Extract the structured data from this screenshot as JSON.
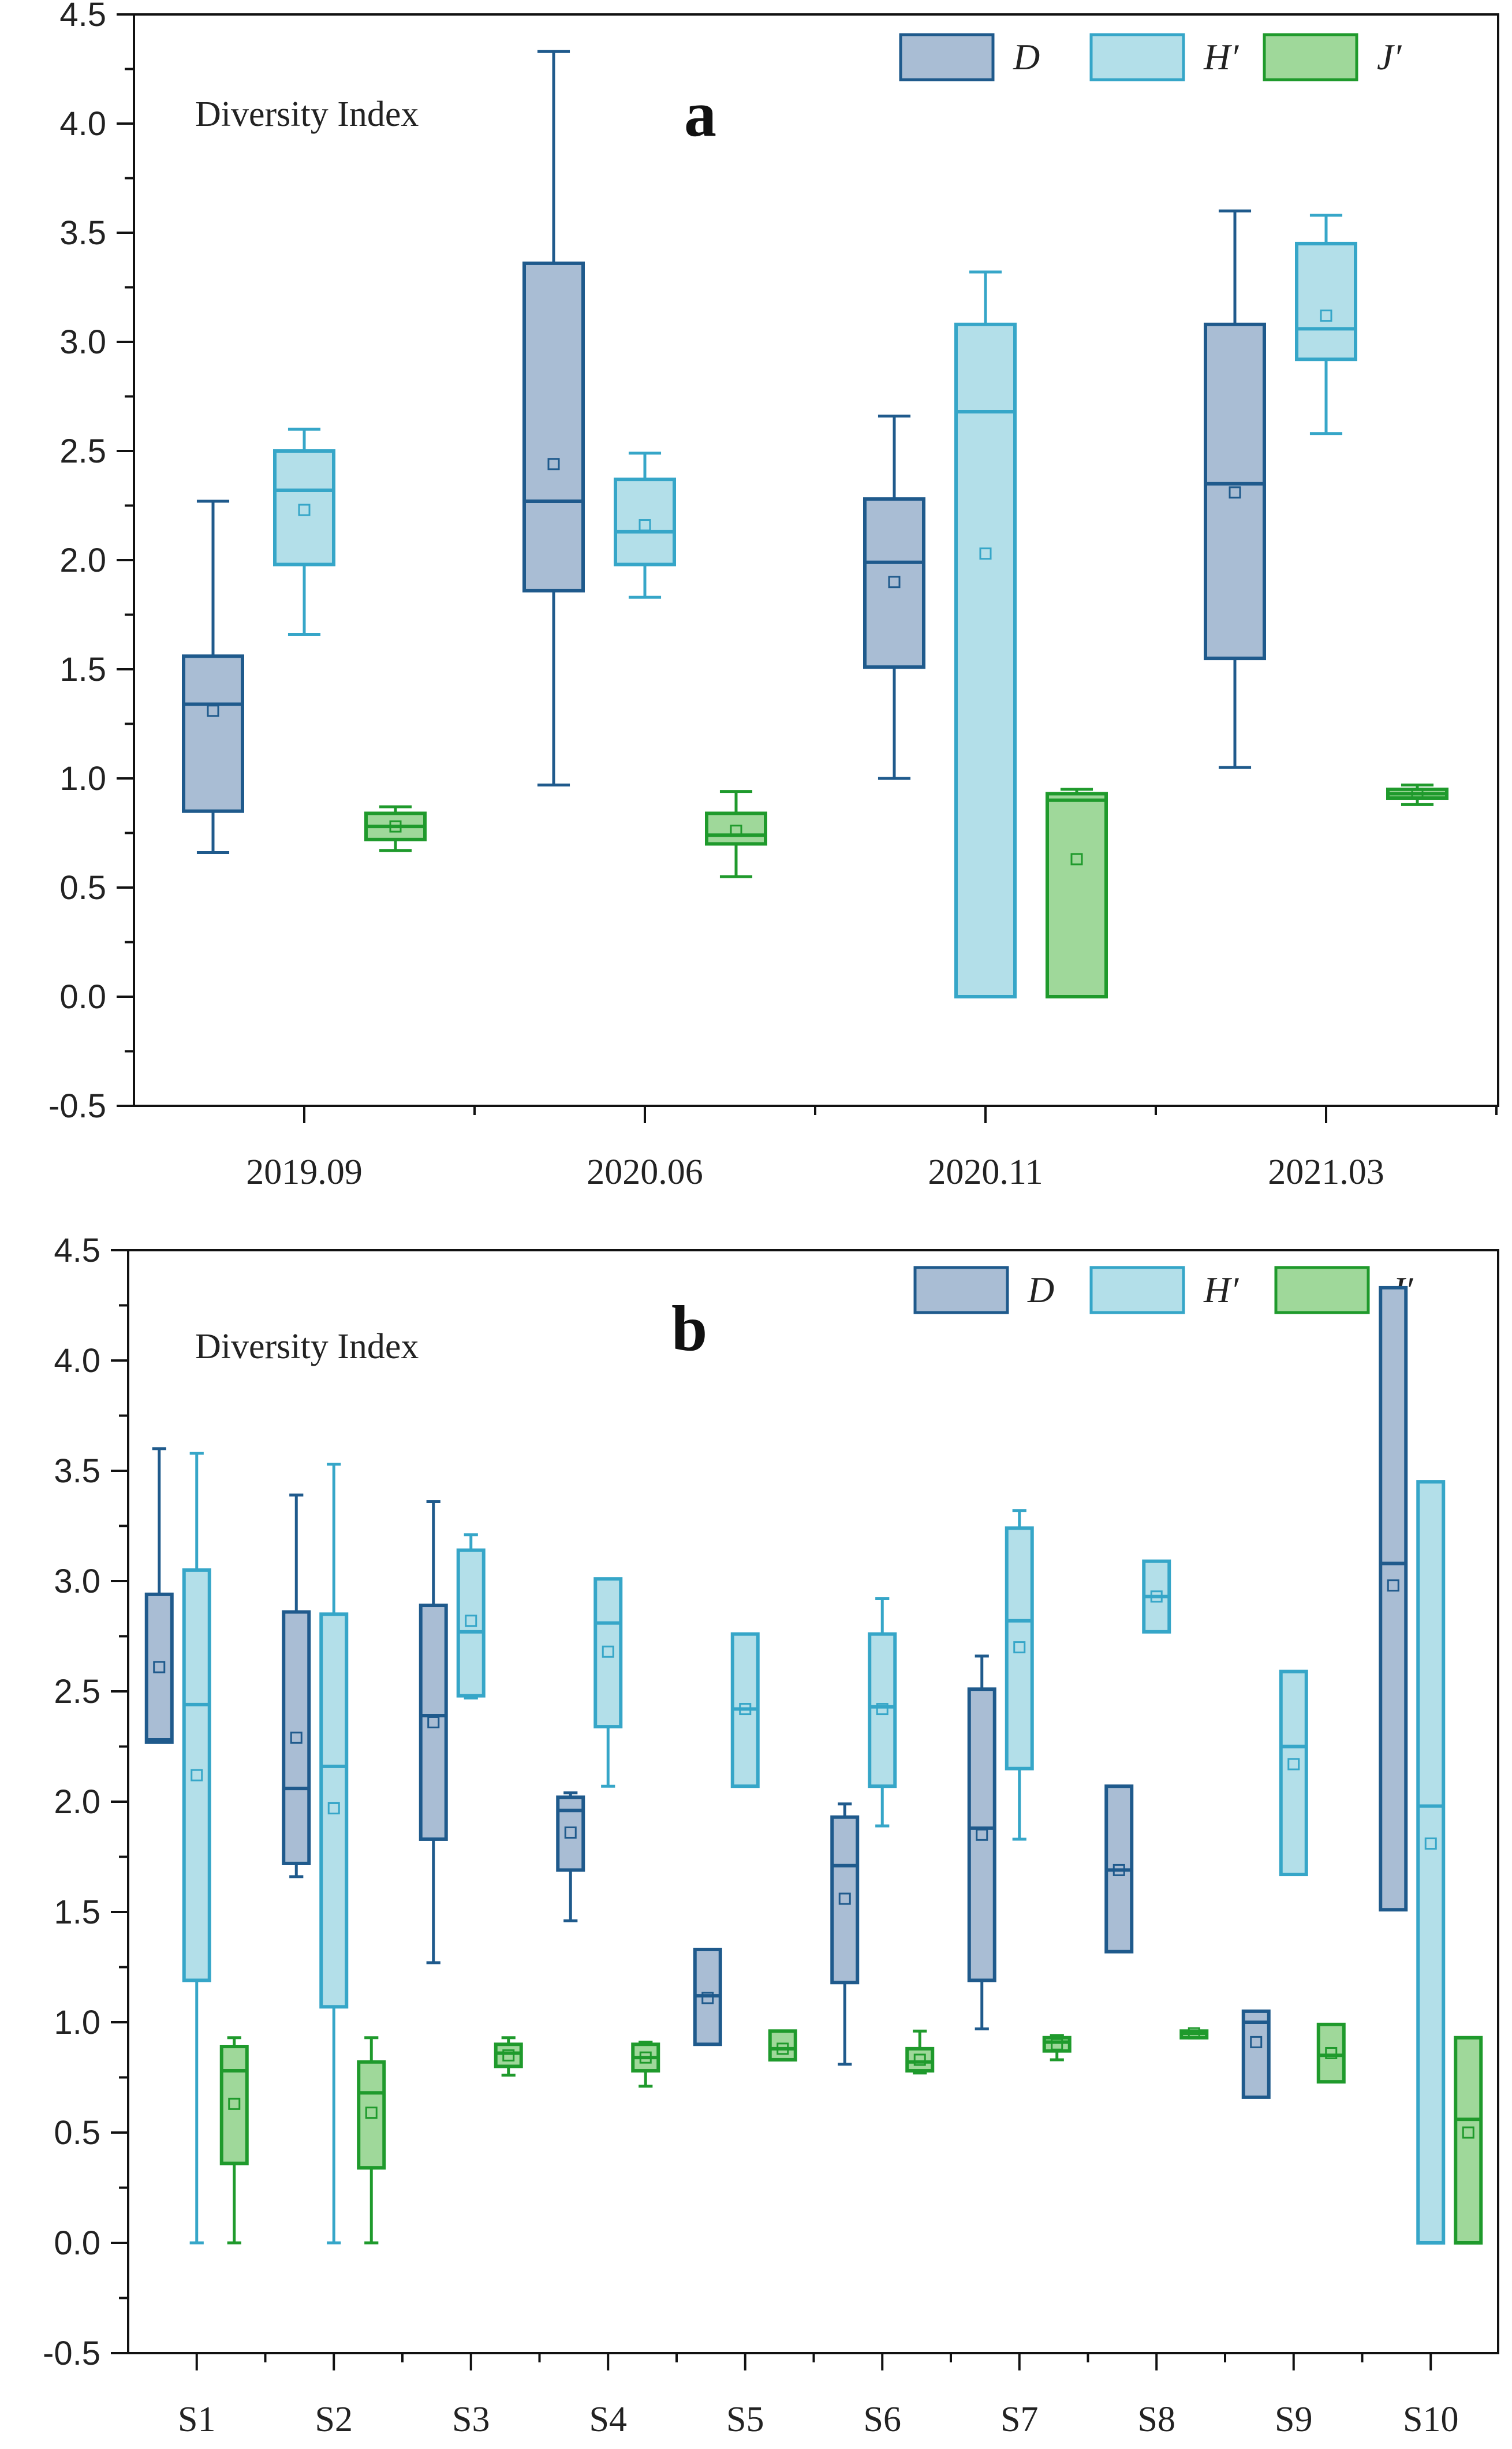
{
  "colors": {
    "D": {
      "stroke": "#1f5a8c",
      "fill": "#a9bdd4"
    },
    "H": {
      "stroke": "#36a6c8",
      "fill": "#b3dfe9"
    },
    "J": {
      "stroke": "#1f9a2c",
      "fill": "#9fd89a"
    }
  },
  "chart_data": [
    {
      "type": "box",
      "id": "a",
      "letter": "a",
      "title": "Diversity Index",
      "ylim": [
        -0.5,
        4.5
      ],
      "yticks": [
        "-0.5",
        "0.0",
        "0.5",
        "1.0",
        "1.5",
        "2.0",
        "2.5",
        "3.0",
        "3.5",
        "4.0",
        "4.5"
      ],
      "categories": [
        "2019.09",
        "2020.06",
        "2020.11",
        "2021.03"
      ],
      "legend": [
        "D",
        "H′",
        "J′"
      ],
      "series": [
        {
          "name": "D",
          "key": "D",
          "boxes": [
            {
              "min": 0.66,
              "q1": 0.85,
              "median": 1.34,
              "q3": 1.56,
              "max": 2.27,
              "mean": 1.31
            },
            {
              "min": 0.97,
              "q1": 1.86,
              "median": 2.27,
              "q3": 3.36,
              "max": 4.33,
              "mean": 2.44
            },
            {
              "min": 1.0,
              "q1": 1.51,
              "median": 1.99,
              "q3": 2.28,
              "max": 2.66,
              "mean": 1.9
            },
            {
              "min": 1.05,
              "q1": 1.55,
              "median": 2.35,
              "q3": 3.08,
              "max": 3.6,
              "mean": 2.31
            }
          ]
        },
        {
          "name": "H′",
          "key": "H",
          "boxes": [
            {
              "min": 1.66,
              "q1": 1.98,
              "median": 2.32,
              "q3": 2.5,
              "max": 2.6,
              "mean": 2.23
            },
            {
              "min": 1.83,
              "q1": 1.98,
              "median": 2.13,
              "q3": 2.37,
              "max": 2.49,
              "mean": 2.16
            },
            {
              "min": 0.0,
              "q1": 0.0,
              "median": 2.68,
              "q3": 3.08,
              "max": 3.32,
              "mean": 2.03
            },
            {
              "min": 2.58,
              "q1": 2.92,
              "median": 3.06,
              "q3": 3.45,
              "max": 3.58,
              "mean": 3.12
            }
          ]
        },
        {
          "name": "J′",
          "key": "J",
          "boxes": [
            {
              "min": 0.67,
              "q1": 0.72,
              "median": 0.78,
              "q3": 0.84,
              "max": 0.87,
              "mean": 0.78
            },
            {
              "min": 0.55,
              "q1": 0.7,
              "median": 0.74,
              "q3": 0.84,
              "max": 0.94,
              "mean": 0.76
            },
            {
              "min": 0.0,
              "q1": 0.0,
              "median": 0.9,
              "q3": 0.93,
              "max": 0.95,
              "mean": 0.63
            },
            {
              "min": 0.88,
              "q1": 0.91,
              "median": 0.93,
              "q3": 0.95,
              "max": 0.97,
              "mean": 0.93
            }
          ]
        }
      ]
    },
    {
      "type": "box",
      "id": "b",
      "letter": "b",
      "title": "Diversity Index",
      "ylim": [
        -0.5,
        4.5
      ],
      "yticks": [
        "-0.5",
        "0.0",
        "0.5",
        "1.0",
        "1.5",
        "2.0",
        "2.5",
        "3.0",
        "3.5",
        "4.0",
        "4.5"
      ],
      "categories": [
        "S1",
        "S2",
        "S3",
        "S4",
        "S5",
        "S6",
        "S7",
        "S8",
        "S9",
        "S10"
      ],
      "legend": [
        "D",
        "H′",
        "J′"
      ],
      "series": [
        {
          "name": "D",
          "key": "D",
          "boxes": [
            {
              "min": 2.27,
              "q1": 2.27,
              "median": 2.28,
              "q3": 2.94,
              "max": 3.6,
              "mean": 2.61
            },
            {
              "min": 1.66,
              "q1": 1.72,
              "median": 2.06,
              "q3": 2.86,
              "max": 3.39,
              "mean": 2.29
            },
            {
              "min": 1.27,
              "q1": 1.83,
              "median": 2.39,
              "q3": 2.89,
              "max": 3.36,
              "mean": 2.36
            },
            {
              "min": 1.46,
              "q1": 1.69,
              "median": 1.96,
              "q3": 2.02,
              "max": 2.04,
              "mean": 1.86
            },
            {
              "min": 0.9,
              "q1": 0.9,
              "median": 1.12,
              "q3": 1.33,
              "max": 1.33,
              "mean": 1.11
            },
            {
              "min": 0.81,
              "q1": 1.18,
              "median": 1.71,
              "q3": 1.93,
              "max": 1.99,
              "mean": 1.56
            },
            {
              "min": 0.97,
              "q1": 1.19,
              "median": 1.88,
              "q3": 2.51,
              "max": 2.66,
              "mean": 1.85
            },
            {
              "min": 1.32,
              "q1": 1.32,
              "median": 1.69,
              "q3": 2.07,
              "max": 2.07,
              "mean": 1.69
            },
            {
              "min": 0.66,
              "q1": 0.66,
              "median": 1.0,
              "q3": 1.05,
              "max": 1.05,
              "mean": 0.91
            },
            {
              "min": 1.51,
              "q1": 1.51,
              "median": 3.08,
              "q3": 4.33,
              "max": 4.33,
              "mean": 2.98
            }
          ]
        },
        {
          "name": "H′",
          "key": "H",
          "boxes": [
            {
              "min": 0.0,
              "q1": 1.19,
              "median": 2.44,
              "q3": 3.05,
              "max": 3.58,
              "mean": 2.12
            },
            {
              "min": 0.0,
              "q1": 1.07,
              "median": 2.16,
              "q3": 2.85,
              "max": 3.53,
              "mean": 1.97
            },
            {
              "min": 2.47,
              "q1": 2.48,
              "median": 2.77,
              "q3": 3.14,
              "max": 3.21,
              "mean": 2.82
            },
            {
              "min": 2.07,
              "q1": 2.34,
              "median": 2.81,
              "q3": 3.01,
              "max": 3.01,
              "mean": 2.68
            },
            {
              "min": 2.07,
              "q1": 2.07,
              "median": 2.42,
              "q3": 2.76,
              "max": 2.76,
              "mean": 2.42
            },
            {
              "min": 1.89,
              "q1": 2.07,
              "median": 2.43,
              "q3": 2.76,
              "max": 2.92,
              "mean": 2.42
            },
            {
              "min": 1.83,
              "q1": 2.15,
              "median": 2.82,
              "q3": 3.24,
              "max": 3.32,
              "mean": 2.7
            },
            {
              "min": 2.77,
              "q1": 2.77,
              "median": 2.93,
              "q3": 3.09,
              "max": 3.09,
              "mean": 2.93
            },
            {
              "min": 1.67,
              "q1": 1.67,
              "median": 2.25,
              "q3": 2.59,
              "max": 2.59,
              "mean": 2.17
            },
            {
              "min": 0.0,
              "q1": 0.0,
              "median": 1.98,
              "q3": 3.45,
              "max": 3.45,
              "mean": 1.81
            }
          ]
        },
        {
          "name": "J′",
          "key": "J",
          "boxes": [
            {
              "min": 0.0,
              "q1": 0.36,
              "median": 0.78,
              "q3": 0.89,
              "max": 0.93,
              "mean": 0.63
            },
            {
              "min": 0.0,
              "q1": 0.34,
              "median": 0.68,
              "q3": 0.82,
              "max": 0.93,
              "mean": 0.59
            },
            {
              "min": 0.76,
              "q1": 0.8,
              "median": 0.86,
              "q3": 0.9,
              "max": 0.93,
              "mean": 0.85
            },
            {
              "min": 0.71,
              "q1": 0.78,
              "median": 0.84,
              "q3": 0.9,
              "max": 0.91,
              "mean": 0.84
            },
            {
              "min": 0.83,
              "q1": 0.83,
              "median": 0.88,
              "q3": 0.96,
              "max": 0.96,
              "mean": 0.88
            },
            {
              "min": 0.77,
              "q1": 0.78,
              "median": 0.82,
              "q3": 0.88,
              "max": 0.96,
              "mean": 0.83
            },
            {
              "min": 0.83,
              "q1": 0.87,
              "median": 0.91,
              "q3": 0.93,
              "max": 0.94,
              "mean": 0.9
            },
            {
              "min": 0.93,
              "q1": 0.93,
              "median": 0.95,
              "q3": 0.96,
              "max": 0.96,
              "mean": 0.95
            },
            {
              "min": 0.73,
              "q1": 0.73,
              "median": 0.85,
              "q3": 0.99,
              "max": 0.99,
              "mean": 0.86
            },
            {
              "min": 0.0,
              "q1": 0.0,
              "median": 0.56,
              "q3": 0.93,
              "max": 0.93,
              "mean": 0.5
            }
          ]
        }
      ]
    }
  ]
}
